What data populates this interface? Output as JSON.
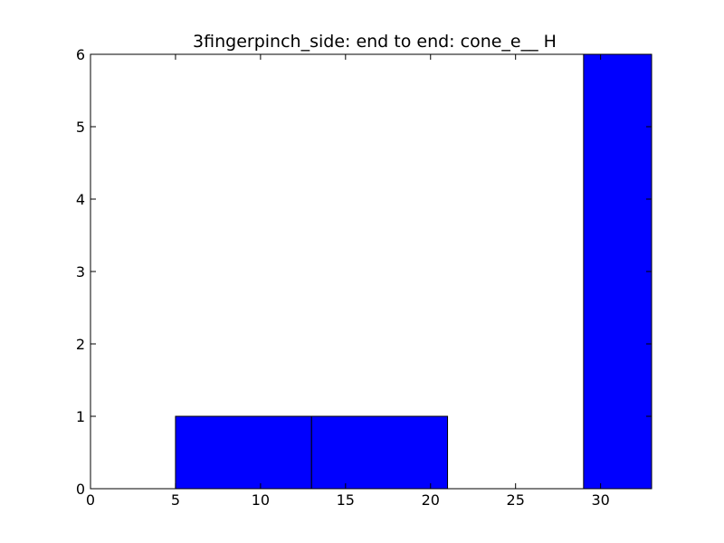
{
  "chart_data": {
    "type": "bar",
    "title": "3fingerpinch_side: end to end: cone_e__ H",
    "xlabel": "",
    "ylabel": "",
    "xlim": [
      0,
      33
    ],
    "ylim": [
      0,
      6
    ],
    "grid": false,
    "bar_color": "#0000ff",
    "bins": [
      {
        "x0": 0,
        "x1": 5,
        "value": 0
      },
      {
        "x0": 5,
        "x1": 13,
        "value": 1
      },
      {
        "x0": 13,
        "x1": 21,
        "value": 1
      },
      {
        "x0": 21,
        "x1": 29,
        "value": 0
      },
      {
        "x0": 29,
        "x1": 33,
        "value": 6
      }
    ],
    "xticks": [
      0,
      5,
      10,
      15,
      20,
      25,
      30
    ],
    "yticks": [
      0,
      1,
      2,
      3,
      4,
      5,
      6
    ],
    "xtick_labels": [
      "0",
      "5",
      "10",
      "15",
      "20",
      "25",
      "30"
    ],
    "ytick_labels": [
      "0",
      "1",
      "2",
      "3",
      "4",
      "5",
      "6"
    ]
  }
}
